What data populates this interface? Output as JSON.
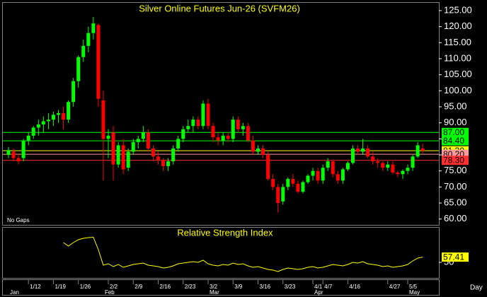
{
  "chart_data": {
    "type": "candlestick",
    "title": "Silver Online Futures Jun-26 (SVFM26)",
    "note": "No Gaps",
    "period": "Day",
    "up_color": "#00ff00",
    "down_color": "#ff0000",
    "ylim": [
      58.4,
      127.2
    ],
    "yticks": [
      {
        "value": 60,
        "label": "60.00"
      },
      {
        "value": 65,
        "label": "65.00"
      },
      {
        "value": 70,
        "label": "70.00"
      },
      {
        "value": 75,
        "label": "75.00"
      },
      {
        "value": 80,
        "label": "80.00"
      },
      {
        "value": 85,
        "label": "85.00"
      },
      {
        "value": 90,
        "label": "90.00"
      },
      {
        "value": 95,
        "label": "95.00"
      },
      {
        "value": 100,
        "label": "100.00"
      },
      {
        "value": 105,
        "label": "105.00"
      },
      {
        "value": 110,
        "label": "110.00"
      },
      {
        "value": 115,
        "label": "115.00"
      },
      {
        "value": 120,
        "label": "120.00"
      },
      {
        "value": 125,
        "label": "125.00"
      }
    ],
    "levels": [
      {
        "value": 87,
        "label": "87.00",
        "color": "#00ff00"
      },
      {
        "value": 84.4,
        "label": "84.40",
        "color": "#00ff00"
      },
      {
        "value": 81.3,
        "label": "81.30",
        "color": "#ffff00"
      },
      {
        "value": 80.2,
        "label": "80.20",
        "color": "#ff9a9a"
      },
      {
        "value": 78.3,
        "label": "78.30",
        "color": "#ff3030"
      }
    ],
    "categories": [
      null,
      null,
      null,
      null,
      "1/12",
      null,
      null,
      null,
      null,
      "1/19",
      null,
      null,
      null,
      null,
      "1/26",
      null,
      null,
      null,
      null,
      null,
      "2/2",
      null,
      null,
      null,
      null,
      "2/9",
      null,
      null,
      null,
      null,
      "2/16",
      null,
      null,
      null,
      null,
      "2/23",
      null,
      null,
      null,
      null,
      "3/2",
      null,
      null,
      null,
      null,
      "3/9",
      null,
      null,
      null,
      null,
      "3/16",
      null,
      null,
      null,
      null,
      "3/23",
      null,
      null,
      null,
      null,
      null,
      "4/1",
      null,
      "4/7",
      null,
      null,
      null,
      null,
      "4/16",
      null,
      null,
      null,
      null,
      null,
      null,
      null,
      "4/27",
      null,
      null,
      null,
      "5/5",
      null,
      null,
      null
    ],
    "months": [
      "Jan",
      null,
      null,
      null,
      null,
      null,
      null,
      null,
      null,
      null,
      null,
      null,
      null,
      null,
      null,
      null,
      null,
      null,
      null,
      "Feb",
      null,
      null,
      null,
      null,
      null,
      null,
      null,
      null,
      null,
      null,
      null,
      null,
      null,
      null,
      null,
      null,
      null,
      null,
      null,
      null,
      "Mar",
      null,
      null,
      null,
      null,
      null,
      null,
      null,
      null,
      null,
      null,
      null,
      null,
      null,
      null,
      null,
      null,
      null,
      null,
      null,
      null,
      "Apr",
      null,
      null,
      null,
      null,
      null,
      null,
      null,
      null,
      null,
      null,
      null,
      null,
      null,
      null,
      null,
      null,
      null,
      null,
      "May",
      null,
      null,
      null
    ],
    "ohlc": [
      [
        80,
        82.5,
        79,
        81.5
      ],
      [
        81,
        82,
        78,
        79
      ],
      [
        79,
        80,
        77,
        78
      ],
      [
        79,
        85,
        78,
        84.5
      ],
      [
        84.5,
        87,
        83,
        86
      ],
      [
        86,
        89,
        85,
        88.5
      ],
      [
        88.5,
        91,
        86,
        89.5
      ],
      [
        89.5,
        92,
        87,
        90.5
      ],
      [
        90.5,
        93,
        88,
        91
      ],
      [
        91,
        93.5,
        89,
        92.5
      ],
      [
        92.5,
        94,
        90,
        93
      ],
      [
        93,
        95,
        88,
        91
      ],
      [
        91,
        97,
        90,
        96.5
      ],
      [
        96.5,
        104,
        95,
        103
      ],
      [
        103,
        111,
        101,
        110.5
      ],
      [
        110.5,
        116,
        109,
        114
      ],
      [
        114,
        120,
        112,
        118
      ],
      [
        118,
        123,
        116,
        121
      ],
      [
        120.5,
        121,
        95,
        97.5
      ],
      [
        97,
        100,
        72,
        85
      ],
      [
        85,
        88,
        79,
        86
      ],
      [
        87,
        89,
        72,
        77
      ],
      [
        77,
        84,
        76,
        83
      ],
      [
        83,
        85,
        74,
        75.5
      ],
      [
        76,
        82,
        75,
        81
      ],
      [
        81,
        85,
        80,
        84
      ],
      [
        84,
        86,
        82,
        85
      ],
      [
        85,
        89,
        84,
        87
      ],
      [
        87,
        88,
        81,
        82
      ],
      [
        82,
        83,
        78,
        79.5
      ],
      [
        79.5,
        81,
        77,
        78.5
      ],
      [
        78.5,
        79,
        75,
        76.5
      ],
      [
        76.5,
        79,
        75,
        78
      ],
      [
        78,
        83,
        77,
        82
      ],
      [
        82,
        86,
        81,
        85
      ],
      [
        85,
        89,
        84,
        88
      ],
      [
        88,
        91,
        87,
        89
      ],
      [
        89,
        92,
        87,
        91
      ],
      [
        91,
        92,
        88,
        89
      ],
      [
        89,
        97,
        88,
        96
      ],
      [
        96,
        97.5,
        88,
        89
      ],
      [
        89,
        90,
        84,
        85.5
      ],
      [
        85.5,
        87,
        83,
        84.5
      ],
      [
        84.5,
        87,
        83,
        86
      ],
      [
        86,
        87,
        84,
        85
      ],
      [
        85,
        92,
        84,
        91
      ],
      [
        91,
        92,
        87,
        88
      ],
      [
        88,
        90,
        86,
        89
      ],
      [
        89,
        90,
        84,
        84.5
      ],
      [
        84.5,
        86,
        80,
        81
      ],
      [
        81,
        83,
        80,
        82
      ],
      [
        82,
        83,
        79,
        80
      ],
      [
        80,
        81,
        72,
        72.5
      ],
      [
        72.5,
        74,
        69,
        70
      ],
      [
        70,
        71,
        62,
        65
      ],
      [
        65.5,
        71,
        64.5,
        70
      ],
      [
        70,
        73,
        69,
        72.5
      ],
      [
        72.5,
        74,
        70,
        71
      ],
      [
        71,
        72,
        68,
        68.5
      ],
      [
        68.5,
        72,
        68,
        71.5
      ],
      [
        71.5,
        74,
        71,
        73.5
      ],
      [
        73.5,
        76,
        72,
        75
      ],
      [
        75,
        76,
        71,
        72
      ],
      [
        72,
        77,
        71,
        76
      ],
      [
        76,
        79,
        75,
        78
      ],
      [
        78,
        78.5,
        73,
        74
      ],
      [
        74,
        75,
        71,
        72
      ],
      [
        72,
        76,
        71,
        75.5
      ],
      [
        75.5,
        78,
        75,
        77.5
      ],
      [
        77.5,
        83,
        77,
        82
      ],
      [
        82,
        83,
        80,
        81
      ],
      [
        81,
        85,
        80,
        82
      ],
      [
        82,
        83,
        79,
        79.5
      ],
      [
        79.5,
        81,
        77,
        78
      ],
      [
        78,
        79,
        76,
        77.5
      ],
      [
        77.5,
        78,
        75,
        76
      ],
      [
        76,
        78,
        75,
        77
      ],
      [
        77,
        78,
        74,
        74.5
      ],
      [
        74.5,
        75,
        73,
        74
      ],
      [
        74,
        75.5,
        72.5,
        75
      ],
      [
        75,
        77,
        74,
        76
      ],
      [
        76,
        80,
        75,
        79.5
      ],
      [
        79.5,
        84,
        79,
        83
      ],
      [
        82,
        83.5,
        80.5,
        81.3
      ]
    ],
    "rsi": {
      "title": "Relative Strength Index",
      "color": "#ffff00",
      "ylim": [
        28,
        98
      ],
      "yticks": [
        50
      ],
      "values": [
        null,
        null,
        null,
        null,
        null,
        null,
        null,
        null,
        null,
        null,
        null,
        78,
        73,
        78,
        82,
        84,
        85,
        85.5,
        68,
        46,
        48,
        44,
        47,
        43,
        45,
        47,
        48,
        49,
        46,
        45,
        44,
        42,
        43,
        45,
        48,
        49,
        50,
        51,
        50,
        53,
        48,
        46,
        45,
        47,
        46,
        49,
        47,
        48,
        45,
        43,
        44,
        42,
        40,
        39,
        37,
        40,
        42,
        41,
        40,
        41,
        43,
        44,
        42,
        43,
        45,
        47,
        46,
        45,
        47,
        50,
        49,
        51,
        48,
        47,
        46,
        44,
        45,
        43,
        44,
        45,
        47,
        52,
        56,
        57.41
      ]
    }
  }
}
